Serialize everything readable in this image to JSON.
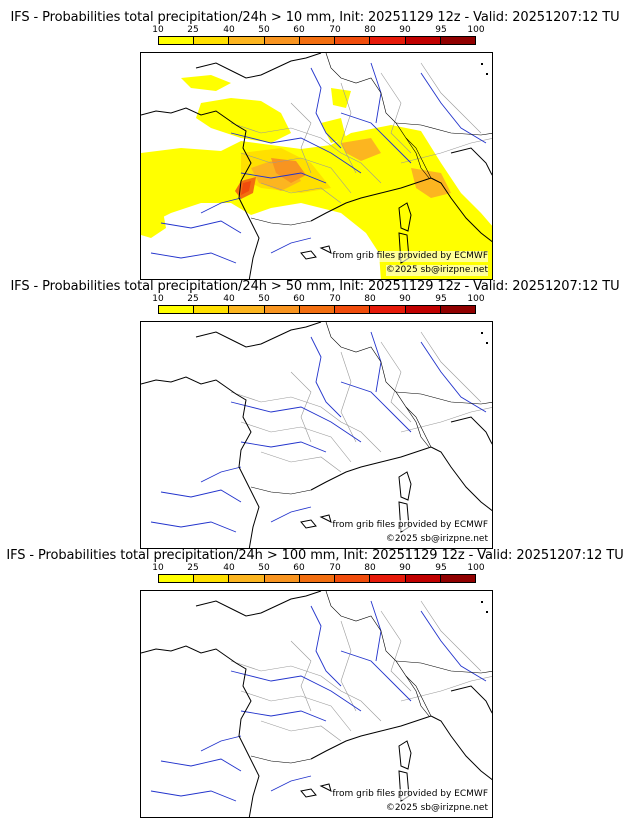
{
  "palette": [
    "#ffff00",
    "#ffe000",
    "#fcb520",
    "#f89420",
    "#f26e10",
    "#f04c0c",
    "#e61a0a",
    "#c00000",
    "#900000",
    "#600000"
  ],
  "colors": {
    "coast": "#000000",
    "river": "#2233cc",
    "border": "#999999"
  },
  "scale_ticks": [
    "10",
    "25",
    "40",
    "50",
    "60",
    "70",
    "80",
    "90",
    "95",
    "100"
  ],
  "credits": {
    "source": "from grib files provided by ECMWF",
    "copyright": "©2025 sb@irizpne.net"
  },
  "panels": [
    {
      "title": "IFS - Probabilities total precipitation/24h > 10 mm, Init: 20251129 12z - Valid: 20251207:12 TU",
      "threshold_mm": 10,
      "has_precip": true
    },
    {
      "title": "IFS - Probabilities total precipitation/24h > 50 mm, Init: 20251129 12z - Valid: 20251207:12 TU",
      "threshold_mm": 50,
      "has_precip": false
    },
    {
      "title": "IFS - Probabilities total precipitation/24h > 100 mm, Init: 20251129 12z - Valid: 20251207:12 TU",
      "threshold_mm": 100,
      "has_precip": false
    }
  ]
}
